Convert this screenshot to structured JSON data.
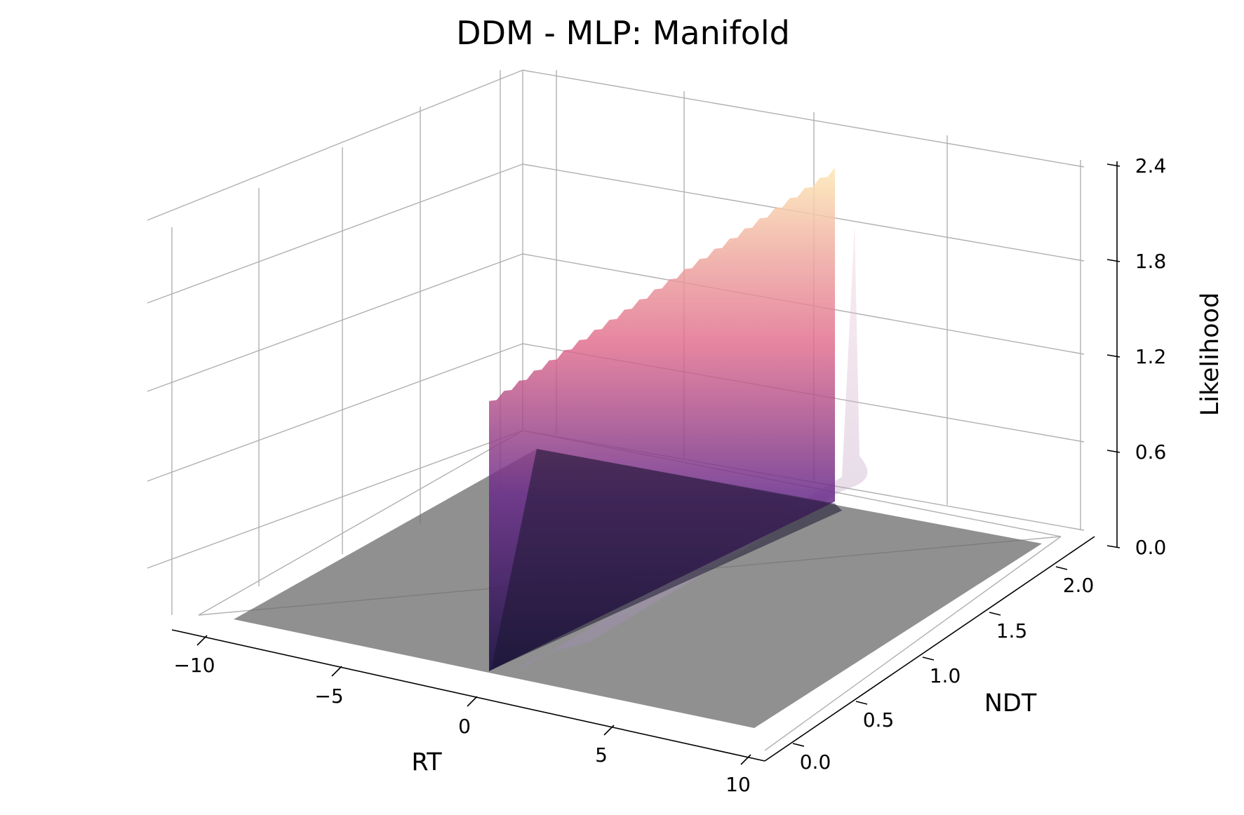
{
  "chart_data": {
    "type": "surface3d",
    "title": "DDM - MLP: Manifold",
    "xlabel": "RT",
    "ylabel": "NDT",
    "zlabel": "Likelihood",
    "x_ticks": [
      "−10",
      "−5",
      "0",
      "5",
      "10"
    ],
    "y_ticks": [
      "0.0",
      "0.5",
      "1.0",
      "1.5",
      "2.0"
    ],
    "z_ticks": [
      "0.0",
      "0.6",
      "1.2",
      "1.8",
      "2.4"
    ],
    "xlim": [
      -11,
      11
    ],
    "ylim": [
      0,
      2.0
    ],
    "zlim": [
      0,
      2.4
    ],
    "colormap": "magma",
    "grid": true,
    "surface": {
      "description_values": {
        "likelihood_zero_for_rt_below_ndt": true,
        "peak_likelihood_at_ndt_0": 2.1,
        "peak_likelihood_at_ndt_2": 1.7
      },
      "floor_color": "#6b6b6b"
    },
    "colors": {
      "magma_low": "#1c1044",
      "magma_mid": "#b63679",
      "magma_high": "#fcfdbf"
    }
  }
}
